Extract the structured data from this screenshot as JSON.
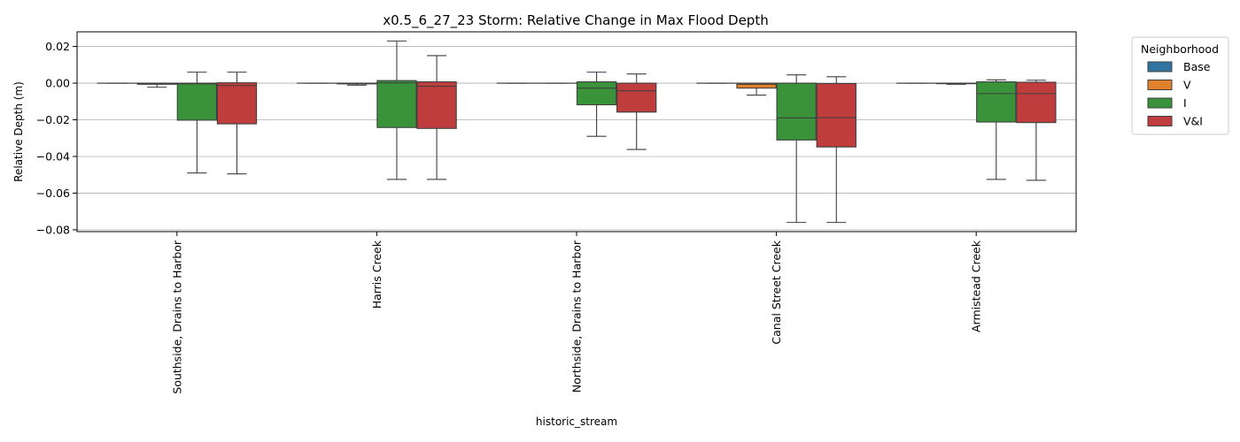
{
  "chart_data": {
    "type": "boxplot",
    "title": "x0.5_6_27_23 Storm: Relative Change in Max Flood Depth",
    "xlabel": "historic_stream",
    "ylabel": "Relative Depth (m)",
    "ylim": [
      -0.081,
      0.028
    ],
    "yticks": [
      0.02,
      0.0,
      -0.02,
      -0.04,
      -0.06,
      -0.08
    ],
    "ytick_labels": [
      "0.02",
      "0.00",
      "−0.02",
      "−0.04",
      "−0.06",
      "−0.08"
    ],
    "grid": "horizontal",
    "legend": {
      "title": "Neighborhood",
      "placement": "outside-top-right"
    },
    "categories": [
      "Southside, Drains to Harbor",
      "Harris Creek",
      "Northside, Drains to Harbor",
      "Canal Street Creek",
      "Armistead Creek"
    ],
    "series": [
      {
        "name": "Base",
        "color": "#3274a1",
        "boxes": [
          {
            "whislo": 0,
            "q1": 0,
            "med": 0,
            "q3": 0,
            "whishi": 0
          },
          {
            "whislo": 0,
            "q1": 0,
            "med": 0,
            "q3": 0,
            "whishi": 0
          },
          {
            "whislo": 0,
            "q1": 0,
            "med": 0,
            "q3": 0,
            "whishi": 0
          },
          {
            "whislo": 0,
            "q1": 0,
            "med": 0,
            "q3": 0,
            "whishi": 0
          },
          {
            "whislo": 0,
            "q1": 0,
            "med": 0,
            "q3": 0,
            "whishi": 0
          }
        ]
      },
      {
        "name": "V",
        "color": "#e1812c",
        "boxes": [
          {
            "whislo": -0.0022,
            "q1": -0.0006,
            "med": -0.0003,
            "q3": 0,
            "whishi": 0
          },
          {
            "whislo": -0.0011,
            "q1": -0.0004,
            "med": -0.0002,
            "q3": 0,
            "whishi": 0
          },
          {
            "whislo": 0,
            "q1": 0,
            "med": 0,
            "q3": 0,
            "whishi": 0
          },
          {
            "whislo": -0.0065,
            "q1": -0.0027,
            "med": -0.0006,
            "q3": 0,
            "whishi": 0
          },
          {
            "whislo": -0.0006,
            "q1": -0.0003,
            "med": -0.0001,
            "q3": 0,
            "whishi": 0
          }
        ]
      },
      {
        "name": "I",
        "color": "#3a923a",
        "boxes": [
          {
            "whislo": -0.049,
            "q1": -0.0202,
            "med": -0.0004,
            "q3": 0,
            "whishi": 0.006
          },
          {
            "whislo": -0.0525,
            "q1": -0.0242,
            "med": 0.0002,
            "q3": 0.0014,
            "whishi": 0.023
          },
          {
            "whislo": -0.029,
            "q1": -0.0118,
            "med": -0.0027,
            "q3": 0.0007,
            "whishi": 0.006
          },
          {
            "whislo": -0.076,
            "q1": -0.031,
            "med": -0.019,
            "q3": 0,
            "whishi": 0.0045
          },
          {
            "whislo": -0.0525,
            "q1": -0.0212,
            "med": -0.0057,
            "q3": 0.0007,
            "whishi": 0.0018
          }
        ]
      },
      {
        "name": "V&I",
        "color": "#c03d3e",
        "boxes": [
          {
            "whislo": -0.0495,
            "q1": -0.0222,
            "med": -0.0013,
            "q3": 0.0002,
            "whishi": 0.006
          },
          {
            "whislo": -0.0525,
            "q1": -0.0247,
            "med": -0.0017,
            "q3": 0.0007,
            "whishi": 0.015
          },
          {
            "whislo": -0.0362,
            "q1": -0.0158,
            "med": -0.0042,
            "q3": 0,
            "whishi": 0.005
          },
          {
            "whislo": -0.076,
            "q1": -0.0348,
            "med": -0.0188,
            "q3": -0.0002,
            "whishi": 0.0035
          },
          {
            "whislo": -0.053,
            "q1": -0.0215,
            "med": -0.0057,
            "q3": 0.0005,
            "whishi": 0.0016
          }
        ]
      }
    ]
  }
}
